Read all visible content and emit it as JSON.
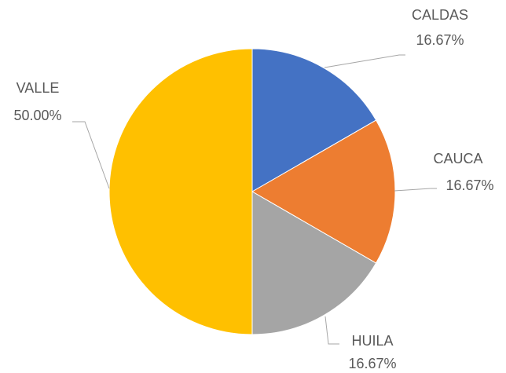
{
  "chart_data": {
    "type": "pie",
    "categories": [
      "CALDAS",
      "CAUCA",
      "HUILA",
      "VALLE"
    ],
    "values": [
      16.67,
      16.67,
      16.67,
      50
    ],
    "value_labels": [
      "16.67%",
      "16.67%",
      "16.67%",
      "50.00%"
    ],
    "colors": [
      "#4472c4",
      "#ed7d31",
      "#a5a5a5",
      "#ffc000"
    ]
  }
}
